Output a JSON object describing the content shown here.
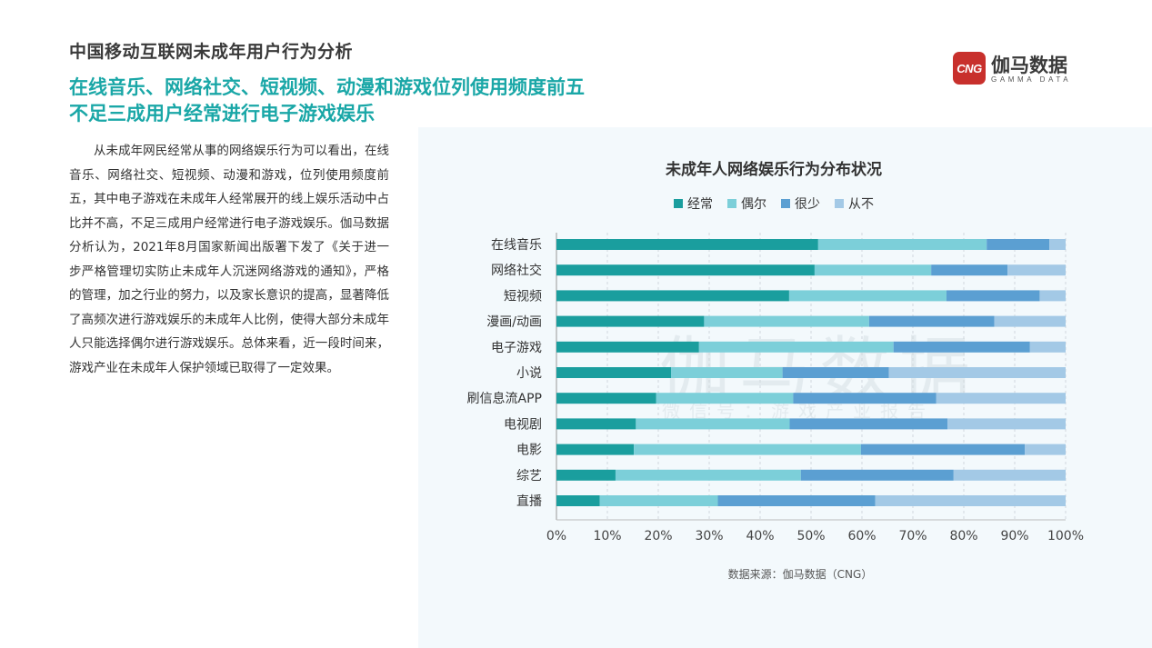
{
  "header": {
    "section_title": "中国移动互联网未成年用户行为分析",
    "headline_line1": "在线音乐、网络社交、短视频、动漫和游戏位列使用频度前五",
    "headline_line2": "不足三成用户经常进行电子游戏娱乐"
  },
  "logo": {
    "mark": "CNG",
    "name": "伽马数据",
    "sub": "GAMMA DATA"
  },
  "body_text": "从未成年网民经常从事的网络娱乐行为可以看出，在线音乐、网络社交、短视频、动漫和游戏，位列使用频度前五，其中电子游戏在未成年人经常展开的线上娱乐活动中占比并不高，不足三成用户经常进行电子游戏娱乐。伽马数据分析认为，2021年8月国家新闻出版署下发了《关于进一步严格管理切实防止未成年人沉迷网络游戏的通知》，严格的管理，加之行业的努力，以及家长意识的提高，显著降低了高频次进行游戏娱乐的未成年人比例，使得大部分未成年人只能选择偶尔进行游戏娱乐。总体来看，近一段时间来，游戏产业在未成年人保护领域已取得了一定效果。",
  "watermark": {
    "main": "伽马数据",
    "sub": "微信号：游戏产业报告"
  },
  "chart_data": {
    "type": "bar",
    "orientation": "horizontal",
    "stacked": true,
    "title": "未成年人网络娱乐行为分布状况",
    "source": "数据来源：伽马数据（CNG）",
    "categories": [
      "在线音乐",
      "网络社交",
      "短视频",
      "漫画/动画",
      "电子游戏",
      "小说",
      "刷信息流APP",
      "电视剧",
      "电影",
      "综艺",
      "直播"
    ],
    "series": [
      {
        "name": "经常",
        "color": "#1a9e9e",
        "values": [
          51.4,
          50.7,
          45.7,
          29.0,
          28.0,
          22.5,
          19.6,
          15.6,
          15.2,
          11.6,
          8.5
        ]
      },
      {
        "name": "偶尔",
        "color": "#7ccfd9",
        "values": [
          33.1,
          22.9,
          30.9,
          32.4,
          38.2,
          21.9,
          26.9,
          30.2,
          44.6,
          36.4,
          23.2
        ]
      },
      {
        "name": "很少",
        "color": "#5b9fd2",
        "values": [
          12.3,
          15.0,
          18.3,
          24.6,
          26.8,
          20.9,
          28.1,
          31.0,
          32.2,
          30.0,
          30.9
        ]
      },
      {
        "name": "从不",
        "color": "#a3c9e6",
        "values": [
          3.2,
          11.4,
          5.1,
          14.0,
          7.0,
          34.7,
          25.4,
          23.2,
          8.0,
          22.0,
          37.4
        ]
      }
    ],
    "x_ticks": [
      "0%",
      "10%",
      "20%",
      "30%",
      "40%",
      "50%",
      "60%",
      "70%",
      "80%",
      "90%",
      "100%"
    ],
    "xlim": [
      0,
      100
    ],
    "grid": true,
    "legend_position": "top-center"
  }
}
